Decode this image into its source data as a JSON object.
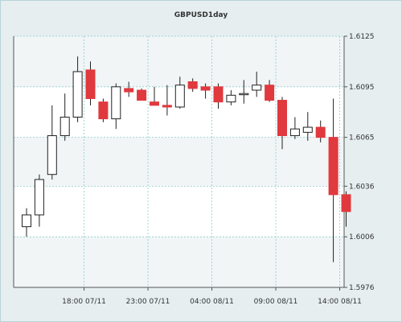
{
  "chart_data": {
    "type": "candlestick",
    "title": "GBPUSD1day",
    "ylim": [
      1.5976,
      1.6125
    ],
    "y_ticks": [
      "1.6125",
      "1.6095",
      "1.6065",
      "1.6036",
      "1.6006",
      "1.5976"
    ],
    "x_ticks": [
      {
        "label": "18:00 07/11",
        "index": 4.5
      },
      {
        "label": "23:00 07/11",
        "index": 9.5
      },
      {
        "label": "04:00 08/11",
        "index": 14.5
      },
      {
        "label": "09:00 08/11",
        "index": 19.5
      },
      {
        "label": "14:00 08/11",
        "index": 24.5
      }
    ],
    "grid": true,
    "colors": {
      "up": "#ffffff",
      "down": "#e0393e",
      "outline": "#222222",
      "grid": "#8ccbcb",
      "background": "#ffffff",
      "band": "#f1f5f6"
    },
    "candles": [
      {
        "open": 1.6012,
        "high": 1.6023,
        "low": 1.6006,
        "close": 1.6019
      },
      {
        "open": 1.6019,
        "high": 1.6043,
        "low": 1.6012,
        "close": 1.604
      },
      {
        "open": 1.6043,
        "high": 1.6084,
        "low": 1.604,
        "close": 1.6066
      },
      {
        "open": 1.6066,
        "high": 1.6091,
        "low": 1.6063,
        "close": 1.6077
      },
      {
        "open": 1.6077,
        "high": 1.6113,
        "low": 1.6074,
        "close": 1.6104
      },
      {
        "open": 1.6105,
        "high": 1.611,
        "low": 1.6084,
        "close": 1.6088
      },
      {
        "open": 1.6086,
        "high": 1.6088,
        "low": 1.6074,
        "close": 1.6076
      },
      {
        "open": 1.6076,
        "high": 1.6097,
        "low": 1.607,
        "close": 1.6095
      },
      {
        "open": 1.6094,
        "high": 1.6098,
        "low": 1.6089,
        "close": 1.6092
      },
      {
        "open": 1.6093,
        "high": 1.6094,
        "low": 1.6087,
        "close": 1.6087
      },
      {
        "open": 1.6086,
        "high": 1.6095,
        "low": 1.6085,
        "close": 1.6084
      },
      {
        "open": 1.6084,
        "high": 1.6096,
        "low": 1.6078,
        "close": 1.6083
      },
      {
        "open": 1.6083,
        "high": 1.6101,
        "low": 1.6082,
        "close": 1.6096
      },
      {
        "open": 1.6098,
        "high": 1.61,
        "low": 1.6092,
        "close": 1.6094
      },
      {
        "open": 1.6095,
        "high": 1.6097,
        "low": 1.6088,
        "close": 1.6093
      },
      {
        "open": 1.6095,
        "high": 1.6097,
        "low": 1.6082,
        "close": 1.6086
      },
      {
        "open": 1.6086,
        "high": 1.6093,
        "low": 1.6084,
        "close": 1.609
      },
      {
        "open": 1.6091,
        "high": 1.6099,
        "low": 1.6085,
        "close": 1.6091
      },
      {
        "open": 1.6093,
        "high": 1.6104,
        "low": 1.6089,
        "close": 1.6096
      },
      {
        "open": 1.6096,
        "high": 1.6099,
        "low": 1.6086,
        "close": 1.6087
      },
      {
        "open": 1.6087,
        "high": 1.6089,
        "low": 1.6058,
        "close": 1.6066
      },
      {
        "open": 1.6066,
        "high": 1.6077,
        "low": 1.6064,
        "close": 1.607
      },
      {
        "open": 1.6068,
        "high": 1.608,
        "low": 1.6063,
        "close": 1.6071
      },
      {
        "open": 1.6071,
        "high": 1.6075,
        "low": 1.6062,
        "close": 1.6065
      },
      {
        "open": 1.6065,
        "high": 1.6088,
        "low": 1.5991,
        "close": 1.6031
      },
      {
        "open": 1.6031,
        "high": 1.6033,
        "low": 1.6012,
        "close": 1.6021
      }
    ]
  }
}
